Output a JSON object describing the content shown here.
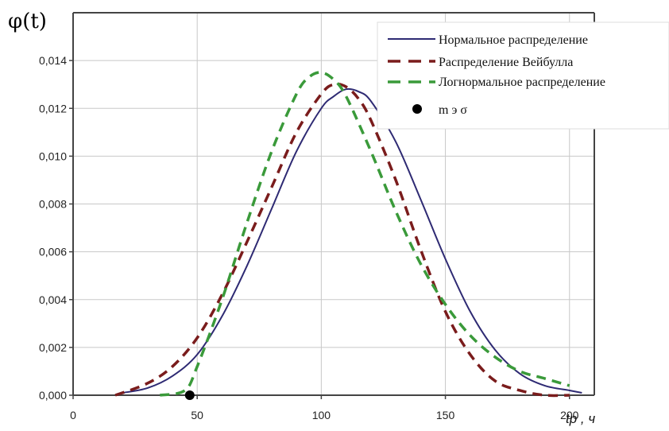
{
  "chart_data": {
    "type": "line",
    "ylabel": "φ(t)",
    "xlabel": "tр , ч",
    "xlim": [
      0,
      210
    ],
    "ylim": [
      0,
      0.016
    ],
    "x_ticks": [
      0,
      50,
      100,
      150,
      200
    ],
    "y_ticks": [
      0,
      0.002,
      0.004,
      0.006,
      0.008,
      0.01,
      0.012,
      0.014
    ],
    "x_tick_labels": [
      "0",
      "50",
      "100",
      "150",
      "200"
    ],
    "y_tick_labels": [
      "0,000",
      "0,002",
      "0,004",
      "0,006",
      "0,008",
      "0,010",
      "0,012",
      "0,014"
    ],
    "grid": true,
    "legend_position": "top-right",
    "series": [
      {
        "name": "Нормальное распределение",
        "color": "#2e2a73",
        "style": "solid",
        "x": [
          20,
          30,
          40,
          50,
          60,
          70,
          80,
          90,
          100,
          105,
          110,
          115,
          120,
          130,
          140,
          150,
          160,
          170,
          180,
          190,
          200,
          205
        ],
        "y": [
          0.0001,
          0.0003,
          0.0008,
          0.0017,
          0.0033,
          0.0054,
          0.0078,
          0.0102,
          0.012,
          0.0125,
          0.0128,
          0.0127,
          0.0123,
          0.0106,
          0.0082,
          0.0057,
          0.0035,
          0.0019,
          0.0009,
          0.0004,
          0.0002,
          0.0001
        ]
      },
      {
        "name": "Распределение Вейбулла",
        "color": "#7a1c1c",
        "style": "dashed",
        "x": [
          17,
          30,
          40,
          50,
          60,
          70,
          80,
          90,
          100,
          105,
          110,
          115,
          120,
          130,
          140,
          150,
          160,
          170,
          180,
          190,
          200
        ],
        "y": [
          0.0,
          0.0005,
          0.0012,
          0.0024,
          0.0042,
          0.0064,
          0.0087,
          0.011,
          0.0126,
          0.013,
          0.0129,
          0.0124,
          0.0115,
          0.009,
          0.0061,
          0.0035,
          0.0017,
          0.0006,
          0.0002,
          0.0,
          0.0
        ]
      },
      {
        "name": "Логнормальное распределение",
        "color": "#3a9a3a",
        "style": "dashed",
        "x": [
          35,
          45,
          50,
          60,
          70,
          80,
          90,
          95,
          100,
          105,
          110,
          120,
          130,
          140,
          150,
          160,
          170,
          180,
          190,
          200
        ],
        "y": [
          0.0,
          0.0002,
          0.0012,
          0.004,
          0.0072,
          0.0102,
          0.0126,
          0.0133,
          0.0135,
          0.0132,
          0.0125,
          0.0102,
          0.0077,
          0.0055,
          0.0038,
          0.0025,
          0.0016,
          0.001,
          0.0007,
          0.0004
        ]
      },
      {
        "name": "m э σ",
        "color": "#000000",
        "style": "marker",
        "x": [
          47
        ],
        "y": [
          0.0
        ]
      }
    ]
  }
}
